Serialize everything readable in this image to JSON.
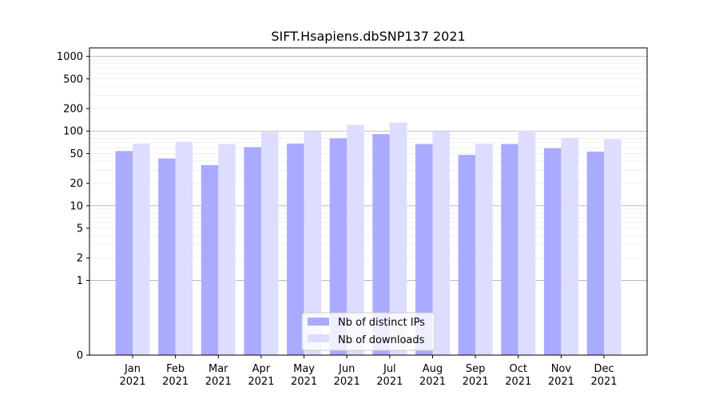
{
  "chart_data": {
    "type": "bar",
    "title": "SIFT.Hsapiens.dbSNP137 2021",
    "xlabel": "",
    "ylabel": "",
    "yscale": "symlog",
    "ylim": [
      0,
      1300
    ],
    "yticks": [
      0,
      1,
      2,
      5,
      10,
      20,
      50,
      100,
      200,
      500,
      1000
    ],
    "ytick_labels": [
      "0",
      "1",
      "2",
      "5",
      "10",
      "20",
      "50",
      "100",
      "200",
      "500",
      "1000"
    ],
    "categories": [
      {
        "month": "Jan",
        "year": "2021"
      },
      {
        "month": "Feb",
        "year": "2021"
      },
      {
        "month": "Mar",
        "year": "2021"
      },
      {
        "month": "Apr",
        "year": "2021"
      },
      {
        "month": "May",
        "year": "2021"
      },
      {
        "month": "Jun",
        "year": "2021"
      },
      {
        "month": "Jul",
        "year": "2021"
      },
      {
        "month": "Aug",
        "year": "2021"
      },
      {
        "month": "Sep",
        "year": "2021"
      },
      {
        "month": "Oct",
        "year": "2021"
      },
      {
        "month": "Nov",
        "year": "2021"
      },
      {
        "month": "Dec",
        "year": "2021"
      }
    ],
    "series": [
      {
        "name": "Nb of distinct IPs",
        "color": "#aaaaff",
        "values": [
          54,
          43,
          35,
          61,
          68,
          80,
          91,
          67,
          48,
          67,
          59,
          53
        ]
      },
      {
        "name": "Nb of downloads",
        "color": "#ddddff",
        "values": [
          68,
          72,
          67,
          97,
          99,
          121,
          130,
          99,
          68,
          102,
          81,
          78
        ]
      }
    ],
    "grid": true,
    "legend_position": "bottom-center"
  }
}
